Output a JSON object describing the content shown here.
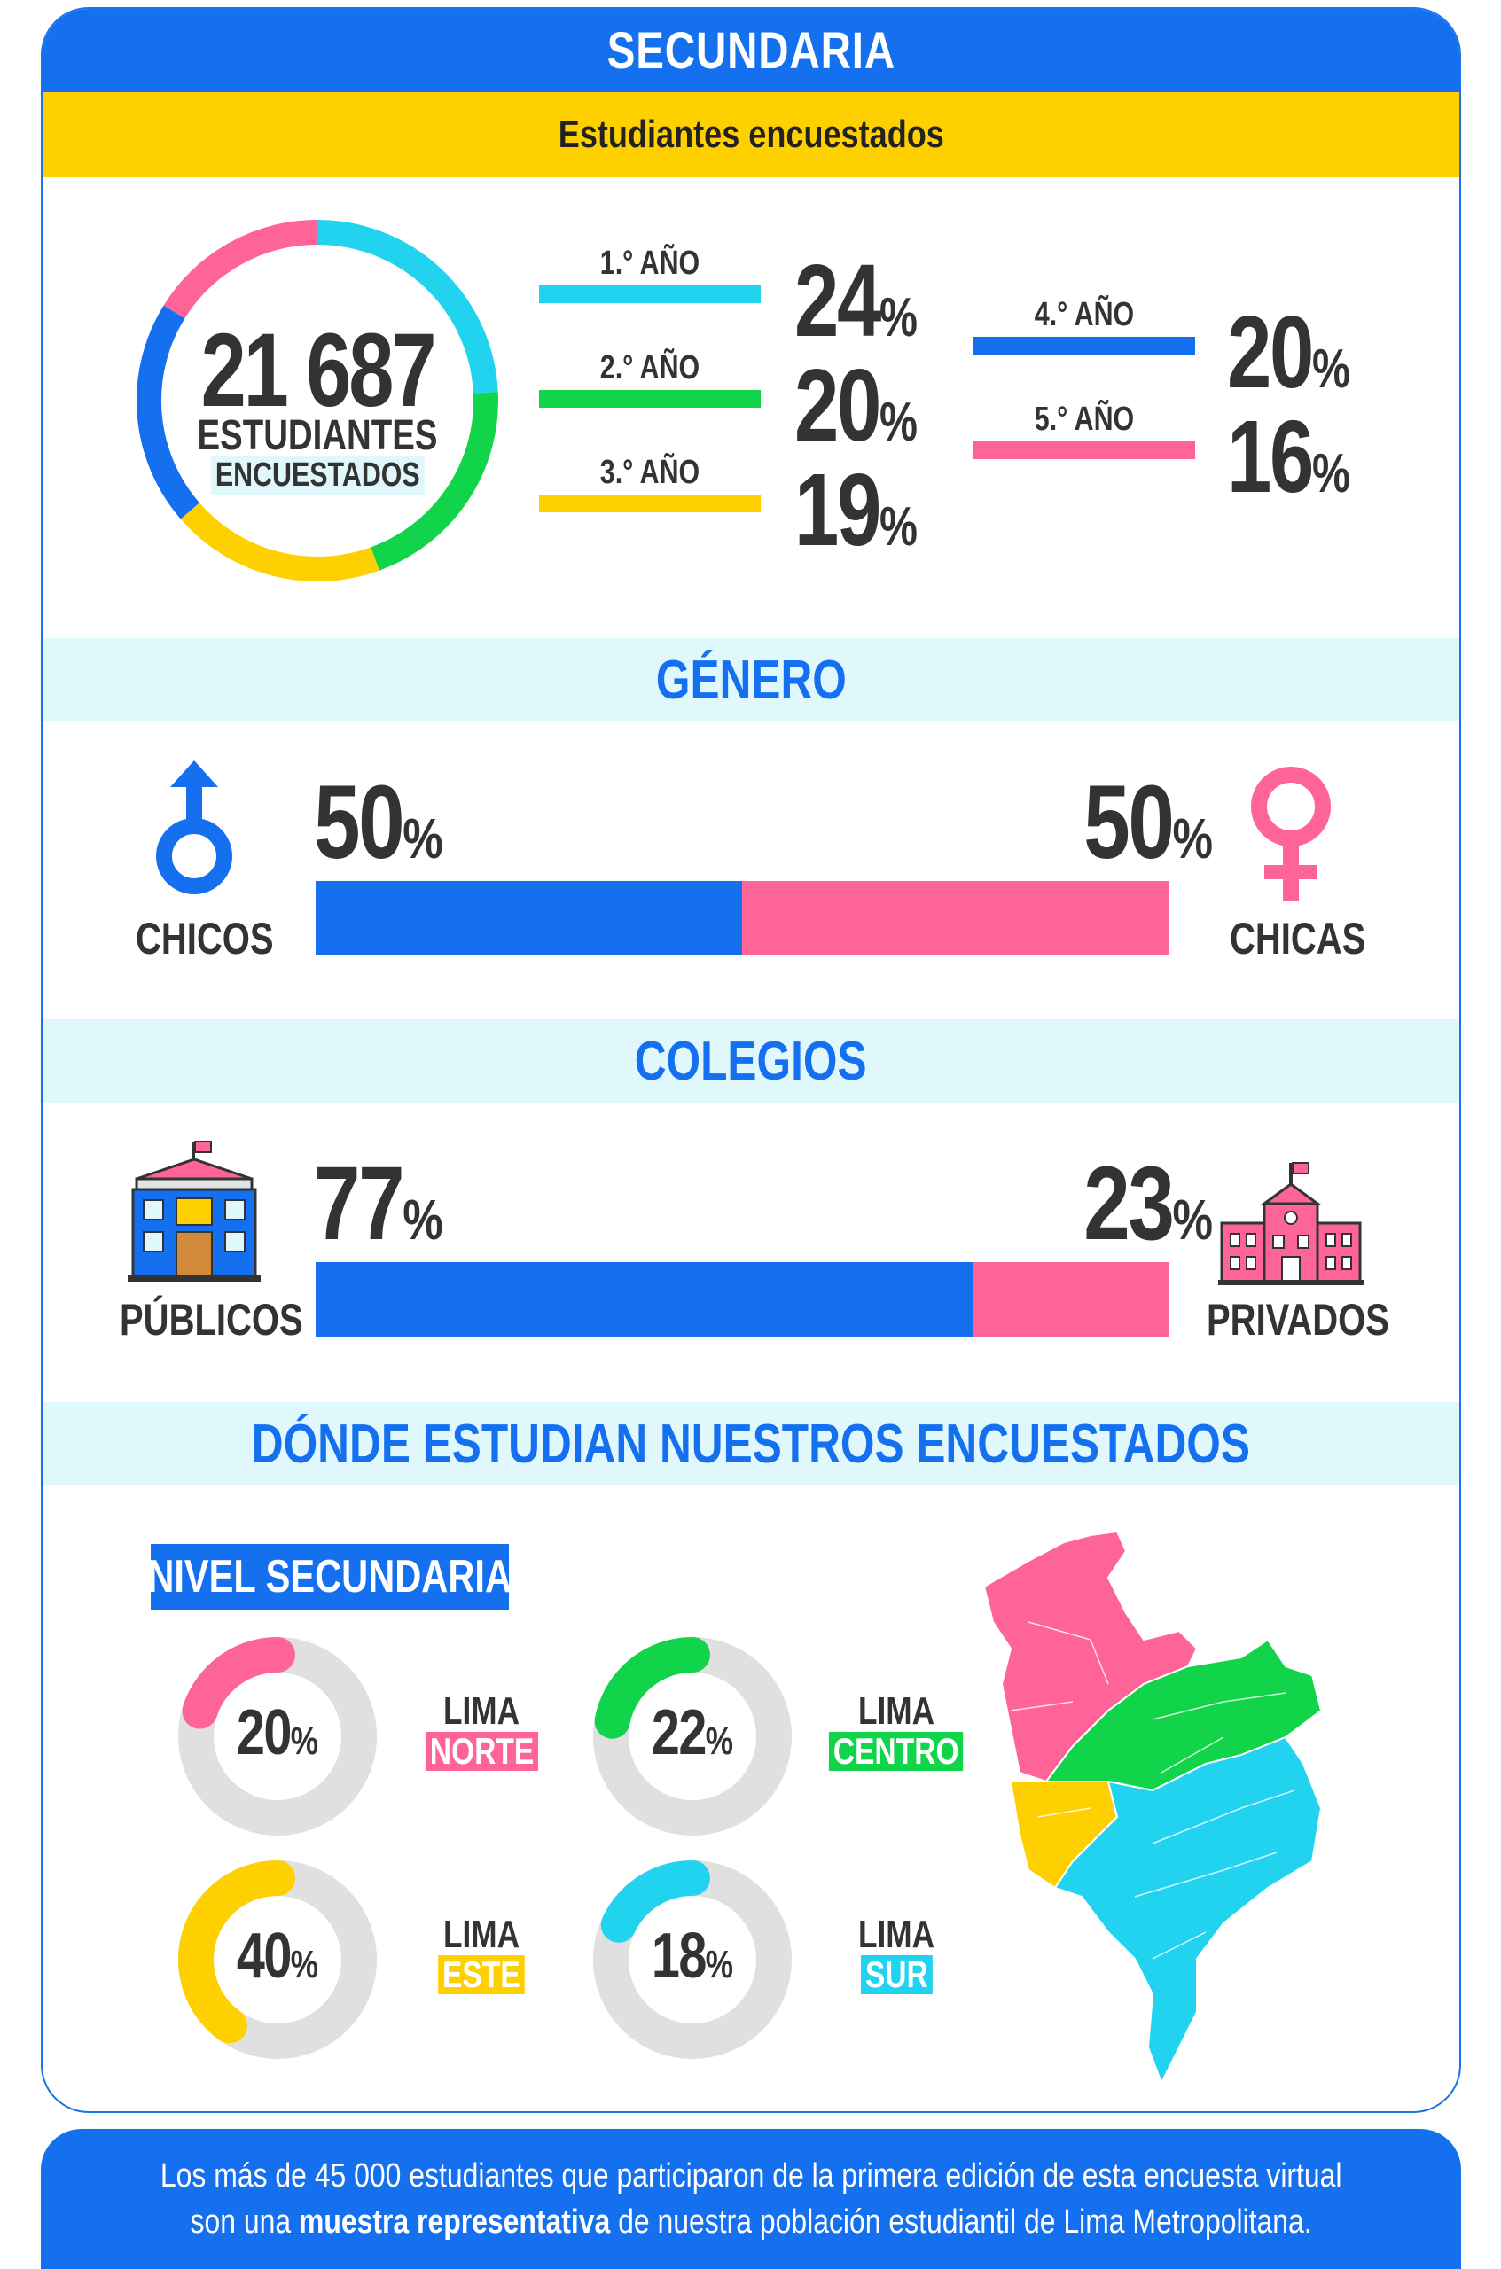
{
  "header": {
    "title": "SECUNDARIA"
  },
  "students_section": {
    "title": "Estudiantes encuestados"
  },
  "total": {
    "number": "21 687",
    "line1": "ESTUDIANTES",
    "line2": "ENCUESTADOS"
  },
  "years": [
    {
      "label": "1.° AÑO",
      "value": "24",
      "color": "#22d3f0"
    },
    {
      "label": "2.° AÑO",
      "value": "20",
      "color": "#12d44a"
    },
    {
      "label": "3.° AÑO",
      "value": "19",
      "color": "#ffd000"
    },
    {
      "label": "4.° AÑO",
      "value": "20",
      "color": "#1570ef"
    },
    {
      "label": "5.° AÑO",
      "value": "16",
      "color": "#ff6499"
    }
  ],
  "percent_sign": "%",
  "gender": {
    "title": "GÉNERO",
    "boys_label": "CHICOS",
    "boys_value": "50",
    "girls_label": "CHICAS",
    "girls_value": "50"
  },
  "schools": {
    "title": "COLEGIOS",
    "public_label": "PÚBLICOS",
    "public_value": "77",
    "private_label": "PRIVADOS",
    "private_value": "23"
  },
  "where": {
    "title": "DÓNDE ESTUDIAN NUESTROS ENCUESTADOS",
    "tag": "NIVEL SECUNDARIA",
    "zones": [
      {
        "lima": "LIMA",
        "name": "NORTE",
        "value": "20",
        "color": "#ff6499"
      },
      {
        "lima": "LIMA",
        "name": "CENTRO",
        "value": "22",
        "color": "#12d44a"
      },
      {
        "lima": "LIMA",
        "name": "ESTE",
        "value": "40",
        "color": "#ffd000"
      },
      {
        "lima": "LIMA",
        "name": "SUR",
        "value": "18",
        "color": "#22d3f0"
      }
    ]
  },
  "footer": {
    "line1": "Los más de 45 000 estudiantes que participaron de la primera edición de esta encuesta virtual",
    "line2_pre": "son una ",
    "line2_bold": "muestra representativa",
    "line2_post": " de nuestra población estudiantil de Lima Metropolitana."
  },
  "colors": {
    "blue": "#1570ef",
    "pink": "#ff6499",
    "green": "#12d44a",
    "yellow": "#ffd000",
    "cyan": "#22d3f0",
    "grey": "#e0e0e0"
  },
  "chart_data": [
    {
      "type": "pie",
      "title": "Estudiantes encuestados",
      "categories": [
        "1.° AÑO",
        "2.° AÑO",
        "3.° AÑO",
        "4.° AÑO",
        "5.° AÑO"
      ],
      "values": [
        24,
        20,
        19,
        20,
        16
      ]
    },
    {
      "type": "bar",
      "title": "GÉNERO",
      "categories": [
        "CHICOS",
        "CHICAS"
      ],
      "values": [
        50,
        50
      ]
    },
    {
      "type": "bar",
      "title": "COLEGIOS",
      "categories": [
        "PÚBLICOS",
        "PRIVADOS"
      ],
      "values": [
        77,
        23
      ]
    },
    {
      "type": "pie",
      "title": "NIVEL SECUNDARIA",
      "categories": [
        "LIMA NORTE",
        "LIMA CENTRO",
        "LIMA ESTE",
        "LIMA SUR"
      ],
      "values": [
        20,
        22,
        40,
        18
      ]
    }
  ]
}
